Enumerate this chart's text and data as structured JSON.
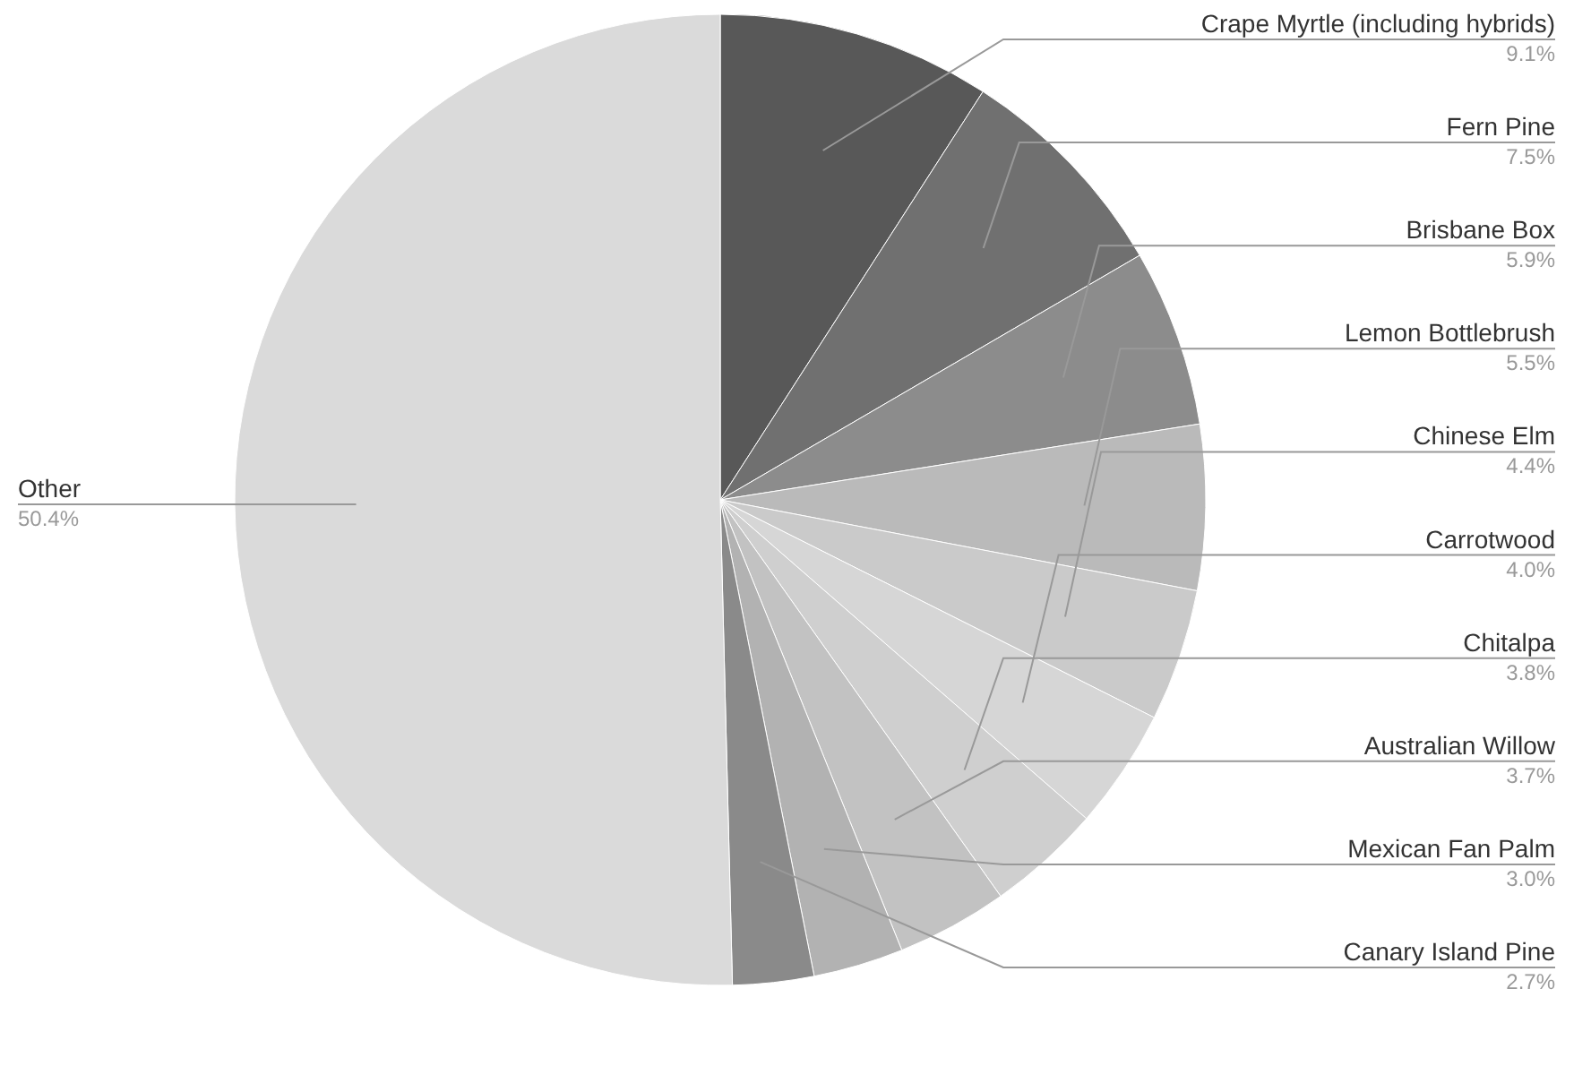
{
  "chart_data": {
    "type": "pie",
    "categories": [
      "Crape Myrtle (including hybrids)",
      "Fern Pine",
      "Brisbane Box",
      "Lemon Bottlebrush",
      "Chinese Elm",
      "Carrotwood",
      "Chitalpa",
      "Australian Willow",
      "Mexican Fan Palm",
      "Canary Island Pine",
      "Other"
    ],
    "values": [
      9.1,
      7.5,
      5.9,
      5.5,
      4.4,
      4.0,
      3.8,
      3.7,
      3.0,
      2.7,
      50.4
    ],
    "value_labels": [
      "9.1%",
      "7.5%",
      "5.9%",
      "5.5%",
      "4.4%",
      "4.0%",
      "3.8%",
      "3.7%",
      "3.0%",
      "2.7%",
      "50.4%"
    ],
    "colors": [
      "#585858",
      "#707070",
      "#8c8c8c",
      "#bababa",
      "#cacaca",
      "#d6d6d6",
      "#cfcfcf",
      "#c2c2c2",
      "#b2b2b2",
      "#8a8a8a",
      "#dadada"
    ]
  }
}
